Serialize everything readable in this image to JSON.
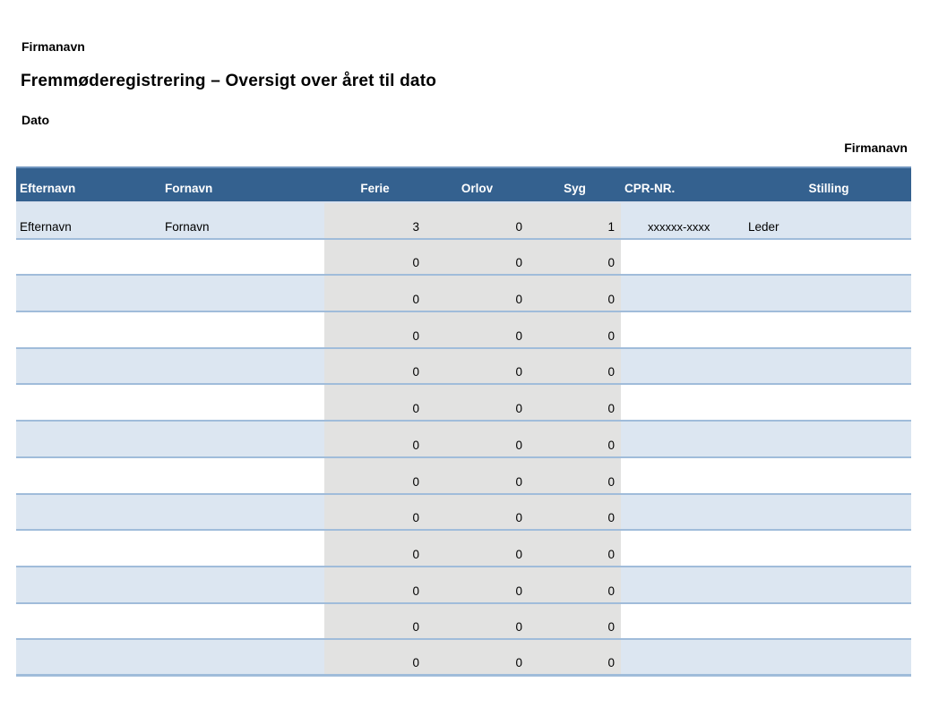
{
  "page": {
    "company_name_top": "Firmanavn",
    "title": "Fremmøderegistrering – Oversigt over året til dato",
    "date_label": "Dato",
    "company_name_right": "Firmanavn"
  },
  "table": {
    "headers": {
      "efternavn": "Efternavn",
      "fornavn": "Fornavn",
      "ferie": "Ferie",
      "orlov": "Orlov",
      "syg": "Syg",
      "cpr": "CPR-NR.",
      "stilling": "Stilling"
    },
    "rows": [
      {
        "efternavn": "Efternavn",
        "fornavn": "Fornavn",
        "ferie": "3",
        "orlov": "0",
        "syg": "1",
        "cpr": "xxxxxx-xxxx",
        "stilling": "Leder"
      },
      {
        "efternavn": "",
        "fornavn": "",
        "ferie": "0",
        "orlov": "0",
        "syg": "0",
        "cpr": "",
        "stilling": ""
      },
      {
        "efternavn": "",
        "fornavn": "",
        "ferie": "0",
        "orlov": "0",
        "syg": "0",
        "cpr": "",
        "stilling": ""
      },
      {
        "efternavn": "",
        "fornavn": "",
        "ferie": "0",
        "orlov": "0",
        "syg": "0",
        "cpr": "",
        "stilling": ""
      },
      {
        "efternavn": "",
        "fornavn": "",
        "ferie": "0",
        "orlov": "0",
        "syg": "0",
        "cpr": "",
        "stilling": ""
      },
      {
        "efternavn": "",
        "fornavn": "",
        "ferie": "0",
        "orlov": "0",
        "syg": "0",
        "cpr": "",
        "stilling": ""
      },
      {
        "efternavn": "",
        "fornavn": "",
        "ferie": "0",
        "orlov": "0",
        "syg": "0",
        "cpr": "",
        "stilling": ""
      },
      {
        "efternavn": "",
        "fornavn": "",
        "ferie": "0",
        "orlov": "0",
        "syg": "0",
        "cpr": "",
        "stilling": ""
      },
      {
        "efternavn": "",
        "fornavn": "",
        "ferie": "0",
        "orlov": "0",
        "syg": "0",
        "cpr": "",
        "stilling": ""
      },
      {
        "efternavn": "",
        "fornavn": "",
        "ferie": "0",
        "orlov": "0",
        "syg": "0",
        "cpr": "",
        "stilling": ""
      },
      {
        "efternavn": "",
        "fornavn": "",
        "ferie": "0",
        "orlov": "0",
        "syg": "0",
        "cpr": "",
        "stilling": ""
      },
      {
        "efternavn": "",
        "fornavn": "",
        "ferie": "0",
        "orlov": "0",
        "syg": "0",
        "cpr": "",
        "stilling": ""
      },
      {
        "efternavn": "",
        "fornavn": "",
        "ferie": "0",
        "orlov": "0",
        "syg": "0",
        "cpr": "",
        "stilling": ""
      }
    ]
  },
  "colors": {
    "header_bg": "#34618F",
    "header_top_border": "#6F94BE",
    "header_separator": "#D9E2EF",
    "header_text": "#FFFFFF",
    "row_alt_bg": "#DCE6F1",
    "row_border": "#A0BCDA",
    "input_cell_bg": "#E2E2E1"
  }
}
